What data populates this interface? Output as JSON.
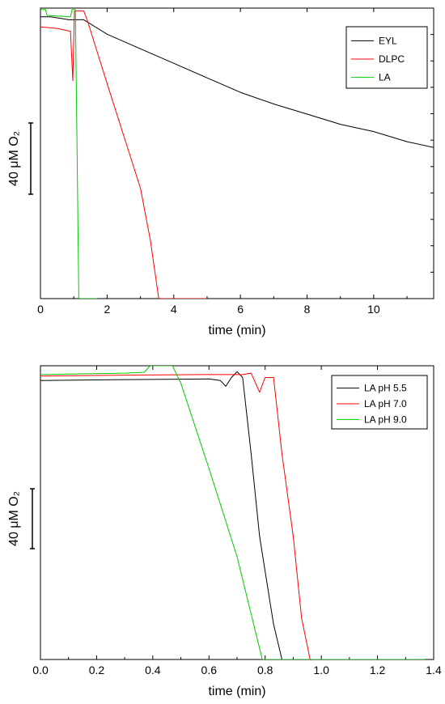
{
  "chart_data": [
    {
      "type": "line",
      "xlabel": "time (min)",
      "ylabel": "",
      "scale_label": "40 μM O₂",
      "xlim": [
        0,
        11.8
      ],
      "ylim": [
        0,
        100
      ],
      "xticks": [
        0,
        2,
        4,
        6,
        8,
        10
      ],
      "xtick_labels": [
        "0",
        "2",
        "4",
        "6",
        "8",
        "10"
      ],
      "legend_position": "top-right",
      "grid": false,
      "series": [
        {
          "name": "EYL",
          "color": "#000000",
          "x": [
            0,
            0.3,
            0.6,
            0.85,
            1.1,
            1.3,
            2,
            3,
            4,
            5,
            6,
            7,
            8,
            9,
            10,
            11,
            11.8
          ],
          "y": [
            97,
            97,
            96.5,
            96,
            96,
            96,
            91,
            86,
            81,
            76,
            71,
            67,
            63.5,
            60,
            57.5,
            54,
            52
          ]
        },
        {
          "name": "DLPC",
          "color": "#ff0000",
          "x": [
            0,
            0.5,
            0.9,
            0.97,
            1.02,
            1.3,
            1.4,
            2,
            2.5,
            3,
            3.3,
            3.55,
            4,
            5
          ],
          "y": [
            93.5,
            93,
            92,
            75,
            99,
            99,
            96,
            74,
            56,
            38,
            20,
            0,
            0,
            0
          ]
        },
        {
          "name": "LA",
          "color": "#00cc00",
          "x": [
            0,
            0.15,
            0.2,
            0.9,
            0.95,
            1.05,
            1.1,
            1.15,
            1.2,
            1.7
          ],
          "y": [
            99.5,
            99.5,
            97.5,
            97,
            99.5,
            99.5,
            50,
            0,
            0,
            0
          ]
        }
      ]
    },
    {
      "type": "line",
      "xlabel": "time (min)",
      "ylabel": "",
      "scale_label": "40 μM O₂",
      "xlim": [
        0,
        1.4
      ],
      "ylim": [
        0,
        100
      ],
      "xticks": [
        0.0,
        0.2,
        0.4,
        0.6,
        0.8,
        1.0,
        1.2,
        1.4
      ],
      "xtick_labels": [
        "0.0",
        "0.2",
        "0.4",
        "0.6",
        "0.8",
        "1.0",
        "1.2",
        "1.4"
      ],
      "legend_position": "top-right",
      "grid": false,
      "series": [
        {
          "name": "LA pH 5.5",
          "color": "#000000",
          "x": [
            0,
            0.3,
            0.6,
            0.64,
            0.66,
            0.68,
            0.7,
            0.72,
            0.75,
            0.78,
            0.8,
            0.83,
            0.86,
            0.9,
            1.0,
            1.2,
            1.37
          ],
          "y": [
            95,
            95.3,
            95.5,
            95,
            93,
            96,
            98,
            96,
            70,
            42,
            30,
            12,
            0,
            0,
            0,
            0,
            0
          ]
        },
        {
          "name": "LA pH 7.0",
          "color": "#ff0000",
          "x": [
            0,
            0.3,
            0.6,
            0.72,
            0.75,
            0.78,
            0.8,
            0.83,
            0.86,
            0.9,
            0.93,
            0.96,
            1.0,
            1.2,
            1.37
          ],
          "y": [
            96.5,
            96.8,
            97,
            97,
            97.5,
            91,
            96,
            96,
            70,
            42,
            14,
            0,
            0,
            0,
            0
          ]
        },
        {
          "name": "LA pH 9.0",
          "color": "#00cc00",
          "x": [
            0,
            0.3,
            0.37,
            0.39,
            0.47,
            0.5,
            0.6,
            0.7,
            0.79,
            0.82,
            0.9,
            1.0,
            1.2,
            1.37
          ],
          "y": [
            97,
            97.5,
            97.8,
            100,
            100,
            94,
            65,
            35,
            0,
            0,
            0,
            0,
            0,
            0
          ]
        }
      ]
    }
  ]
}
